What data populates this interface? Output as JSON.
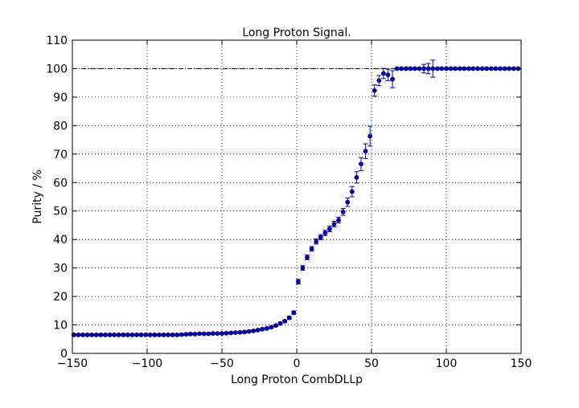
{
  "chart_data": {
    "type": "scatter",
    "title": "Long Proton Signal.",
    "xlabel": "Long Proton CombDLLp",
    "ylabel": "Purity / %",
    "xlim": [
      -150,
      150
    ],
    "ylim": [
      0,
      110
    ],
    "xticks": [
      "−150",
      "−100",
      "−50",
      "0",
      "50",
      "100",
      "150"
    ],
    "yticks": [
      "0",
      "10",
      "20",
      "30",
      "40",
      "50",
      "60",
      "70",
      "80",
      "90",
      "100",
      "110"
    ],
    "grid": true,
    "reference_line": 100,
    "marker_color": "#0000bf",
    "series": [
      {
        "x": [
          -149,
          -146,
          -143,
          -140,
          -137,
          -134,
          -131,
          -128,
          -125,
          -122,
          -119,
          -116,
          -113,
          -110,
          -107,
          -104,
          -101,
          -98,
          -95,
          -92,
          -89,
          -86,
          -83,
          -80,
          -77,
          -74,
          -71,
          -68,
          -65,
          -62,
          -59,
          -56,
          -53,
          -50,
          -47,
          -44,
          -41,
          -38,
          -35,
          -32,
          -29,
          -26,
          -23,
          -20,
          -17,
          -14,
          -11,
          -8,
          -5,
          -2,
          1,
          4,
          7,
          10,
          13,
          16,
          19,
          22,
          25,
          28,
          31,
          34,
          37,
          40,
          43,
          46,
          49,
          52,
          55,
          58,
          61,
          64,
          67,
          70,
          73,
          76,
          79,
          82,
          85,
          88,
          91,
          94,
          97,
          100,
          103,
          106,
          109,
          112,
          115,
          118,
          121,
          124,
          127,
          130,
          133,
          136,
          139,
          142,
          145,
          148
        ],
        "y": [
          6.5,
          6.5,
          6.5,
          6.5,
          6.5,
          6.5,
          6.5,
          6.5,
          6.5,
          6.5,
          6.5,
          6.5,
          6.5,
          6.5,
          6.5,
          6.5,
          6.5,
          6.5,
          6.5,
          6.5,
          6.5,
          6.5,
          6.5,
          6.5,
          6.6,
          6.7,
          6.8,
          6.8,
          6.9,
          6.9,
          6.9,
          7.0,
          7.0,
          7.0,
          7.1,
          7.2,
          7.3,
          7.4,
          7.5,
          7.7,
          7.9,
          8.2,
          8.5,
          8.8,
          9.2,
          9.8,
          10.5,
          11.3,
          12.5,
          14.3,
          25.2,
          30.0,
          33.7,
          36.7,
          39.3,
          40.8,
          42.3,
          43.7,
          45.4,
          46.8,
          49.7,
          53.1,
          56.8,
          61.8,
          66.5,
          71.0,
          76.3,
          92.3,
          95.8,
          98.3,
          97.8,
          96.3,
          100,
          100,
          100,
          100,
          100,
          100,
          100,
          100,
          100,
          100,
          100,
          100,
          100,
          100,
          100,
          100,
          100,
          100,
          100,
          100,
          100,
          100,
          100,
          100,
          100,
          100,
          100,
          100
        ],
        "err": [
          0.3,
          0.3,
          0.3,
          0.3,
          0.3,
          0.3,
          0.3,
          0.3,
          0.3,
          0.3,
          0.3,
          0.3,
          0.3,
          0.3,
          0.3,
          0.3,
          0.3,
          0.3,
          0.3,
          0.3,
          0.3,
          0.3,
          0.3,
          0.3,
          0.3,
          0.3,
          0.3,
          0.3,
          0.3,
          0.3,
          0.3,
          0.3,
          0.3,
          0.3,
          0.3,
          0.3,
          0.3,
          0.3,
          0.3,
          0.3,
          0.3,
          0.3,
          0.3,
          0.3,
          0.3,
          0.3,
          0.4,
          0.4,
          0.5,
          0.6,
          0.8,
          0.8,
          0.8,
          0.8,
          0.9,
          0.9,
          0.9,
          1.0,
          1.0,
          1.0,
          1.2,
          1.5,
          1.8,
          2.0,
          2.3,
          2.6,
          3.5,
          2.0,
          1.8,
          1.8,
          2.0,
          3.0,
          0.3,
          0.3,
          0.3,
          0.3,
          0.3,
          0.3,
          1.5,
          1.8,
          3.0,
          0.3,
          0.3,
          0.3,
          0.3,
          0.3,
          0.3,
          0.3,
          0.3,
          0.3,
          0.3,
          0.3,
          0.3,
          0.3,
          0.3,
          0.3,
          0.3,
          0.3,
          0.3,
          0.3
        ]
      }
    ]
  }
}
